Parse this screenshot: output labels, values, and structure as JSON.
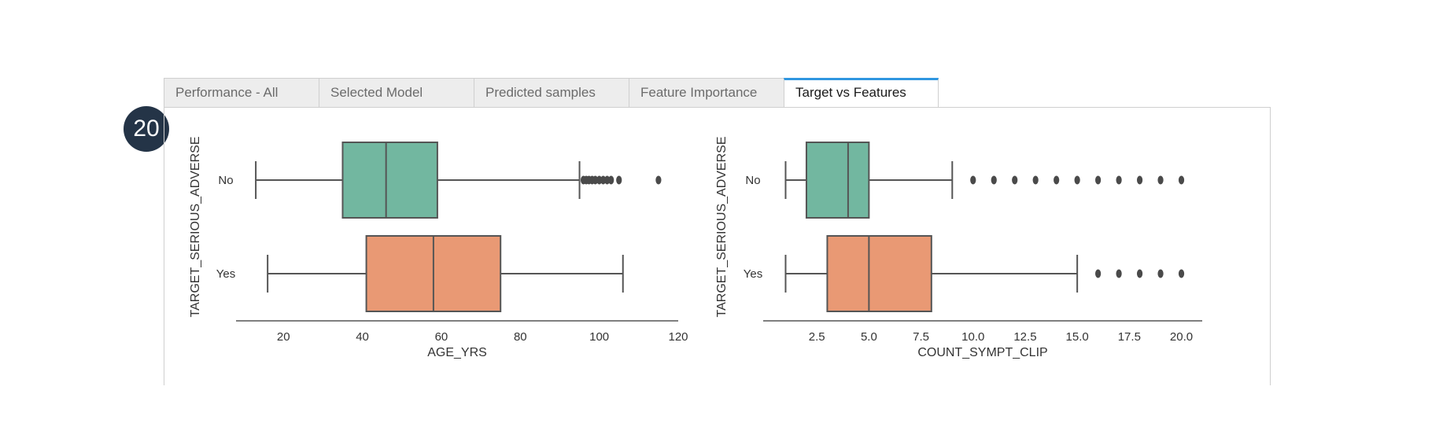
{
  "badge": {
    "number": "20",
    "color": "#243447"
  },
  "tabs": [
    {
      "label": "Performance - All",
      "active": false
    },
    {
      "label": "Selected Model",
      "active": false
    },
    {
      "label": "Predicted samples",
      "active": false
    },
    {
      "label": "Feature Importance",
      "active": false
    },
    {
      "label": "Target vs Features",
      "active": true
    }
  ],
  "colors": {
    "no": "#72b7a0",
    "yes": "#e99974",
    "line": "#555555",
    "tab_accent": "#2f96e0"
  },
  "chart_data": [
    {
      "type": "box",
      "orientation": "horizontal",
      "xlabel": "AGE_YRS",
      "ylabel": "TARGET_SERIOUS_ADVERSE",
      "categories": [
        "No",
        "Yes"
      ],
      "xlim": [
        8,
        120
      ],
      "xticks": [
        20,
        40,
        60,
        80,
        100,
        120
      ],
      "boxes": [
        {
          "name": "No",
          "whisker_low": 13,
          "q1": 35,
          "median": 46,
          "q3": 59,
          "whisker_high": 95,
          "outliers": [
            96,
            96.7,
            97.4,
            98.2,
            99,
            100,
            101,
            102,
            103,
            105,
            115
          ]
        },
        {
          "name": "Yes",
          "whisker_low": 16,
          "q1": 41,
          "median": 58,
          "q3": 75,
          "whisker_high": 106,
          "outliers": []
        }
      ]
    },
    {
      "type": "box",
      "orientation": "horizontal",
      "xlabel": "COUNT_SYMPT_CLIP",
      "ylabel": "TARGET_SERIOUS_ADVERSE",
      "categories": [
        "No",
        "Yes"
      ],
      "xlim": [
        0,
        21
      ],
      "xticks": [
        2.5,
        5.0,
        7.5,
        10.0,
        12.5,
        15.0,
        17.5,
        20.0
      ],
      "xticklabels": [
        "2.5",
        "5.0",
        "7.5",
        "10.0",
        "12.5",
        "15.0",
        "17.5",
        "20.0"
      ],
      "boxes": [
        {
          "name": "No",
          "whisker_low": 1,
          "q1": 2,
          "median": 4,
          "q3": 5,
          "whisker_high": 9,
          "outliers": [
            10,
            11,
            12,
            13,
            14,
            15,
            16,
            17,
            18,
            19,
            20
          ]
        },
        {
          "name": "Yes",
          "whisker_low": 1,
          "q1": 3,
          "median": 5,
          "q3": 8,
          "whisker_high": 15,
          "outliers": [
            16,
            17,
            18,
            19,
            20
          ]
        }
      ]
    }
  ]
}
